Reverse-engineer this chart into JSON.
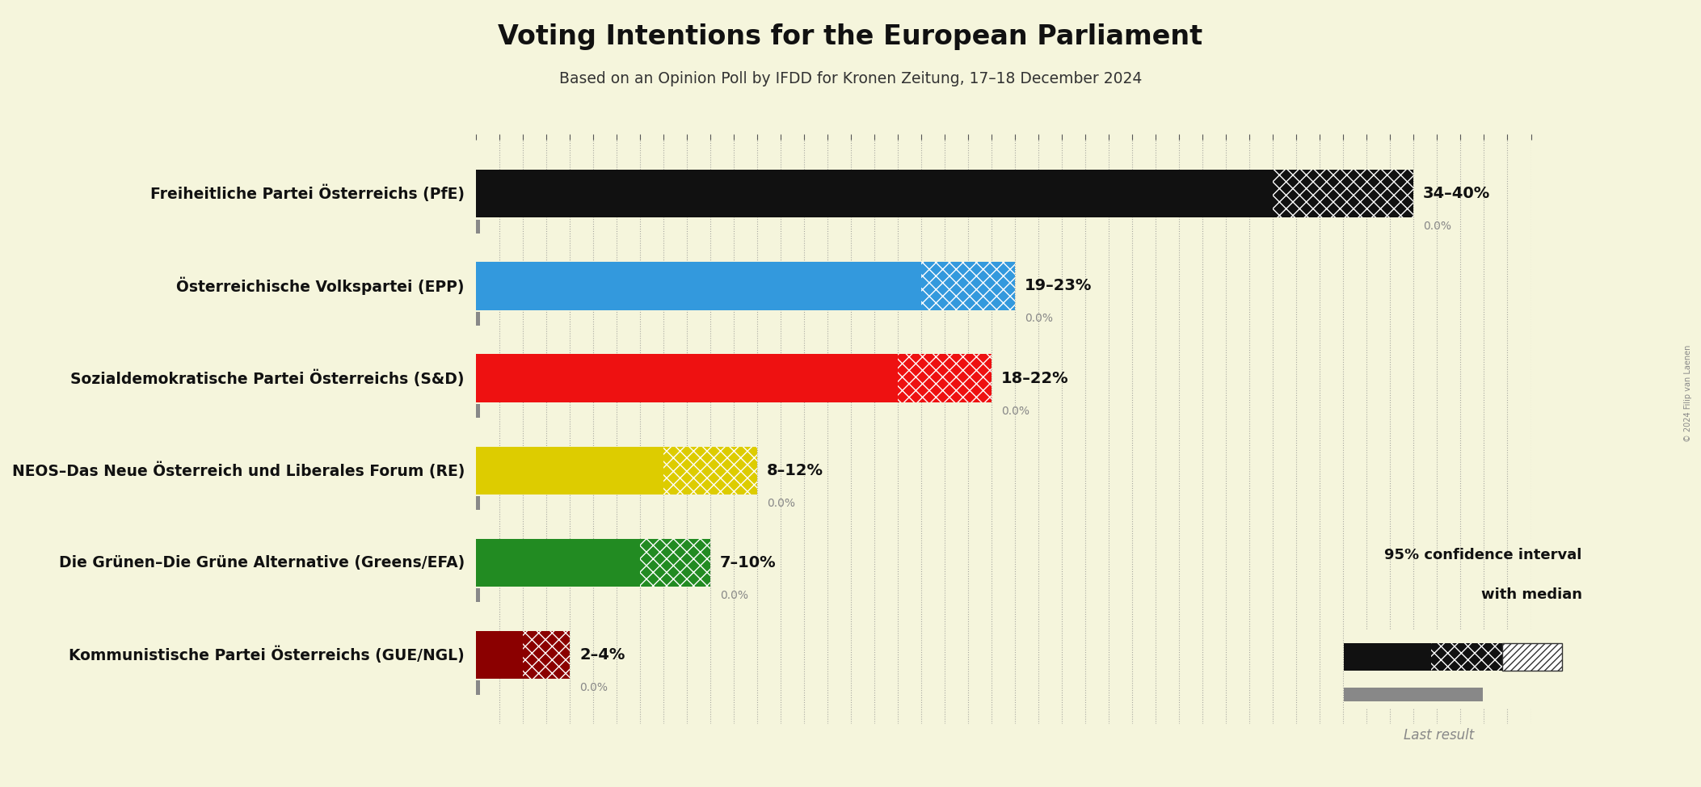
{
  "title": "Voting Intentions for the European Parliament",
  "subtitle": "Based on an Opinion Poll by IFDD for Kronen Zeitung, 17–18 December 2024",
  "background_color": "#F5F5DC",
  "parties": [
    "Freiheitliche Partei Österreichs (PfE)",
    "Österreichische Volkspartei (EPP)",
    "Sozialdemokratische Partei Österreichs (S&D)",
    "NEOS–Das Neue Österreich und Liberales Forum (RE)",
    "Die Grünen–Die Grüne Alternative (Greens/EFA)",
    "Kommunistische Partei Österreichs (GUE/NGL)"
  ],
  "low_values": [
    34,
    19,
    18,
    8,
    7,
    2
  ],
  "high_values": [
    40,
    23,
    22,
    12,
    10,
    4
  ],
  "last_results": [
    0.0,
    0.0,
    0.0,
    0.0,
    0.0,
    0.0
  ],
  "bar_colors": [
    "#111111",
    "#3399DD",
    "#EE1111",
    "#DDCC00",
    "#228B22",
    "#8B0000"
  ],
  "labels": [
    "34–40%",
    "19–23%",
    "18–22%",
    "8–12%",
    "7–10%",
    "2–4%"
  ],
  "last_result_labels": [
    "0.0%",
    "0.0%",
    "0.0%",
    "0.0%",
    "0.0%",
    "0.0%"
  ],
  "xlim": [
    0,
    45
  ],
  "bar_height": 0.52,
  "last_bar_height": 0.15,
  "grid_color": "#888888",
  "tick_color": "#555555",
  "legend_text1": "95% confidence interval",
  "legend_text2": "with median",
  "legend_last": "Last result"
}
